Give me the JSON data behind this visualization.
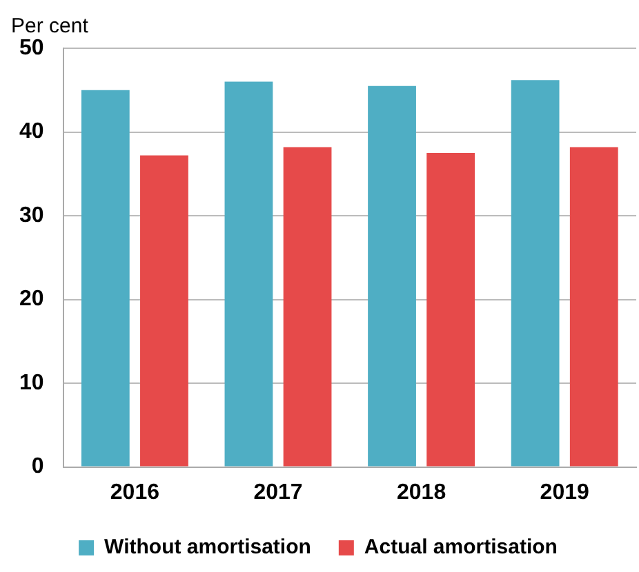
{
  "chart_data": {
    "type": "bar",
    "ylabel": "Per cent",
    "categories": [
      "2016",
      "2017",
      "2018",
      "2019"
    ],
    "series": [
      {
        "name": "Without amortisation",
        "color": "#4faec4",
        "values": [
          45.0,
          46.0,
          45.5,
          46.2
        ]
      },
      {
        "name": "Actual amortisation",
        "color": "#e64a4a",
        "values": [
          37.2,
          38.2,
          37.5,
          38.2
        ]
      }
    ],
    "ylim": [
      0,
      50
    ],
    "yticks": [
      0,
      10,
      20,
      30,
      40,
      50
    ],
    "grid": "y",
    "legend": "bottom"
  }
}
